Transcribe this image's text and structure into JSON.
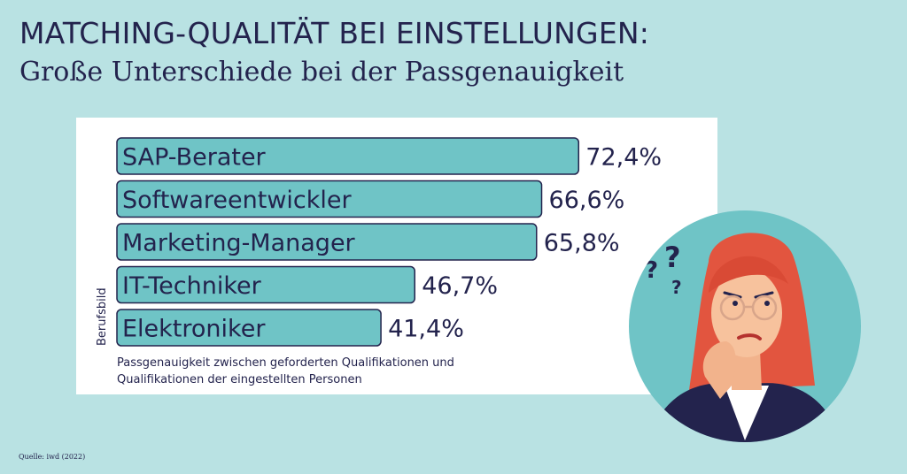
{
  "header": {
    "title": "MATCHING-QUALITÄT BEI EINSTELLUNGEN:",
    "subtitle": "Große Unterschiede bei der Passgenauigkeit"
  },
  "chart_data": {
    "type": "bar",
    "orientation": "horizontal",
    "ylabel": "Berufsbild",
    "caption": "Passgenauigkeit zwischen geforderten Qualifikationen und Qualifikationen der eingestellten Personen",
    "categories": [
      "SAP-Berater",
      "Softwareentwickler",
      "Marketing-Manager",
      "IT-Techniker",
      "Elektroniker"
    ],
    "values": [
      72.4,
      66.6,
      65.8,
      46.7,
      41.4
    ],
    "value_labels": [
      "72,4%",
      "66,6%",
      "65,8%",
      "46,7%",
      "41,4%"
    ],
    "unit": "%",
    "xlim": [
      0,
      100
    ],
    "bar_color": "#6fc4c6",
    "bar_border_color": "#23234d",
    "grid": false,
    "legend": "none"
  },
  "footer": {
    "source": "Quelle: iwd (2022)"
  },
  "illustration": {
    "icon": "thinking-woman-icon",
    "circle_color": "#6fc4c6"
  }
}
